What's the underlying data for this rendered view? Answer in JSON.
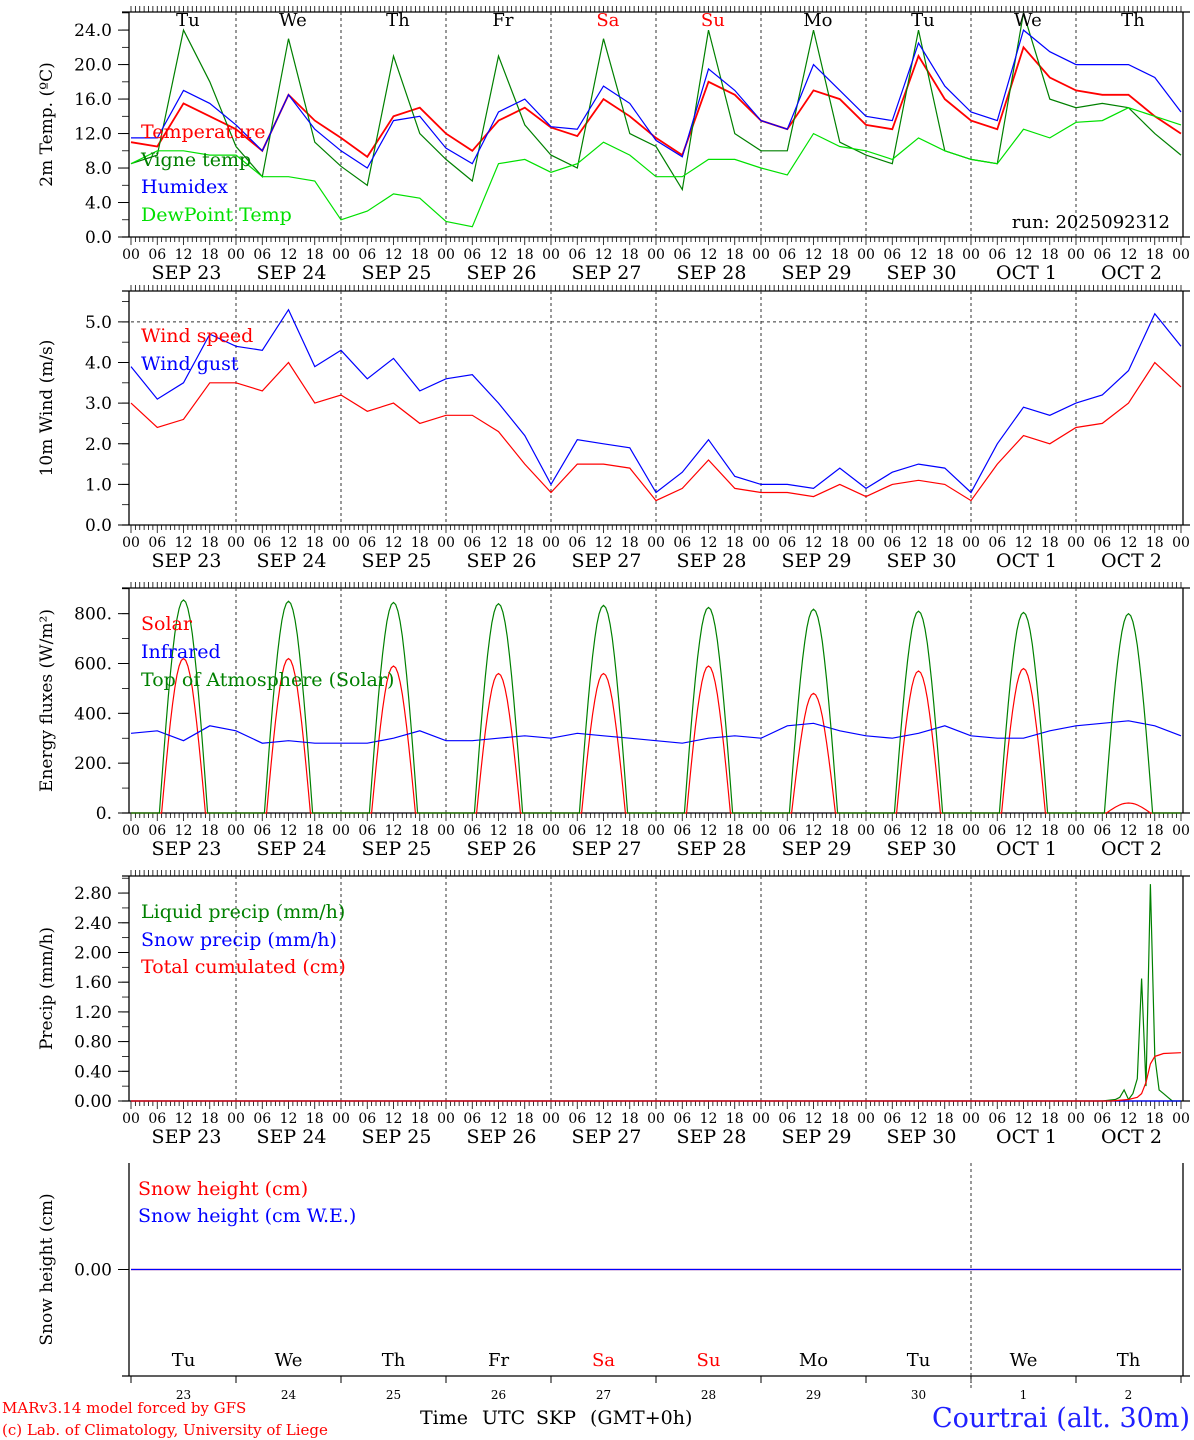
{
  "chart_data": [
    {
      "type": "line",
      "id": "temp",
      "ylabel": "2m Temp. (ºC)",
      "ylim": [
        0,
        26.1
      ],
      "yticks": [
        "0.0",
        "4.0",
        "8.0",
        "12.0",
        "16.0",
        "20.0",
        "24.0"
      ],
      "ytick_values": [
        0,
        4,
        8,
        12,
        16,
        20,
        24
      ],
      "annotation": "run: 2025092312",
      "x_step_hours": 6,
      "series": [
        {
          "name": "Temperature",
          "color": "#ff0000",
          "values": [
            11,
            10.5,
            15.5,
            14,
            12.5,
            10,
            16.5,
            13.5,
            11.5,
            9.3,
            14,
            15,
            12,
            10,
            13.5,
            15,
            12.7,
            11.7,
            16,
            14,
            11.5,
            9.5,
            18,
            16.5,
            13.5,
            12.5,
            17,
            16,
            13,
            12.5,
            21,
            16,
            13.5,
            12.5,
            22,
            18.5,
            17,
            16.5,
            16.5,
            14,
            12
          ]
        },
        {
          "name": "Vigne temp",
          "color": "#008000",
          "values": [
            8.5,
            9.5,
            24,
            18,
            10.5,
            7,
            23,
            11,
            8.2,
            6,
            21,
            12,
            9,
            6.5,
            21,
            13,
            9.5,
            8,
            23,
            12,
            10.5,
            5.5,
            24,
            12,
            10,
            10,
            24,
            11,
            9.5,
            8.5,
            24,
            10,
            9,
            8.5,
            26,
            16,
            15,
            15.5,
            15,
            12,
            9.5
          ]
        },
        {
          "name": "Humidex",
          "color": "#0000ff",
          "values": [
            11.5,
            11.5,
            17,
            15.5,
            13,
            10,
            16.5,
            12.5,
            10,
            8,
            13.5,
            14,
            10.3,
            8.5,
            14.5,
            16,
            12.8,
            12.5,
            17.5,
            15.5,
            11.2,
            9.3,
            19.5,
            17,
            13.5,
            12.5,
            20,
            17,
            14,
            13.5,
            22.5,
            17.5,
            14.5,
            13.5,
            24,
            21.5,
            20,
            20,
            20,
            18.5,
            14.5
          ]
        },
        {
          "name": "DewPoint Temp",
          "color": "#00e000",
          "values": [
            8.5,
            10,
            10,
            9.5,
            9.5,
            7,
            7,
            6.5,
            2,
            3,
            5,
            4.5,
            1.8,
            1.2,
            8.5,
            9,
            7.5,
            8.5,
            11,
            9.5,
            7,
            7,
            9,
            9,
            8,
            7.2,
            12,
            10.5,
            10,
            9,
            11.5,
            10,
            9,
            8.5,
            12.5,
            11.5,
            13.3,
            13.5,
            15,
            14,
            13
          ]
        }
      ]
    },
    {
      "type": "line",
      "id": "wind",
      "ylabel": "10m Wind (m/s)",
      "ylim": [
        0,
        5.76
      ],
      "yticks": [
        "0.0",
        "1.0",
        "2.0",
        "3.0",
        "4.0",
        "5.0"
      ],
      "ytick_values": [
        0,
        1,
        2,
        3,
        4,
        5
      ],
      "reference_line": 5.0,
      "x_step_hours": 6,
      "series": [
        {
          "name": "Wind speed",
          "color": "#ff0000",
          "values": [
            3.0,
            2.4,
            2.6,
            3.5,
            3.5,
            3.3,
            4.0,
            3.0,
            3.2,
            2.8,
            3.0,
            2.5,
            2.7,
            2.7,
            2.3,
            1.5,
            0.8,
            1.5,
            1.5,
            1.4,
            0.6,
            0.9,
            1.6,
            0.9,
            0.8,
            0.8,
            0.7,
            1.0,
            0.7,
            1.0,
            1.1,
            1.0,
            0.6,
            1.5,
            2.2,
            2.0,
            2.4,
            2.5,
            3.0,
            4.0,
            3.4
          ]
        },
        {
          "name": "Wind gust",
          "color": "#0000ff",
          "values": [
            3.9,
            3.1,
            3.5,
            4.7,
            4.4,
            4.3,
            5.3,
            3.9,
            4.3,
            3.6,
            4.1,
            3.3,
            3.6,
            3.7,
            3.0,
            2.2,
            1.0,
            2.1,
            2.0,
            1.9,
            0.8,
            1.3,
            2.1,
            1.2,
            1.0,
            1.0,
            0.9,
            1.4,
            0.9,
            1.3,
            1.5,
            1.4,
            0.8,
            2.0,
            2.9,
            2.7,
            3.0,
            3.2,
            3.8,
            5.2,
            4.4
          ]
        }
      ]
    },
    {
      "type": "line",
      "id": "energy",
      "ylabel": "Energy fluxes (W/m²)",
      "ylim": [
        0,
        903
      ],
      "yticks": [
        "0.",
        "200.",
        "400.",
        "600.",
        "800."
      ],
      "ytick_values": [
        0,
        200,
        400,
        600,
        800
      ],
      "series": [
        {
          "name": "Solar",
          "color": "#ff0000",
          "daily_peak": [
            620,
            620,
            590,
            560,
            560,
            590,
            480,
            570,
            580,
            40
          ]
        },
        {
          "name": "Infrared",
          "color": "#0000ff",
          "x_step_hours": 6,
          "values": [
            320,
            330,
            290,
            350,
            330,
            280,
            290,
            280,
            280,
            280,
            300,
            330,
            290,
            290,
            300,
            310,
            300,
            320,
            310,
            300,
            290,
            280,
            300,
            310,
            300,
            350,
            360,
            330,
            310,
            300,
            320,
            350,
            310,
            300,
            300,
            330,
            350,
            360,
            370,
            350,
            310
          ]
        },
        {
          "name": "Top of Atmosphere (Solar)",
          "color": "#008000",
          "daily_peak": [
            855,
            850,
            845,
            840,
            833,
            825,
            818,
            810,
            805,
            800
          ]
        }
      ]
    },
    {
      "type": "line",
      "id": "precip",
      "ylabel": "Precip (mm/h)",
      "ylim": [
        0,
        3.03
      ],
      "yticks": [
        "0.00",
        "0.40",
        "0.80",
        "1.20",
        "1.60",
        "2.00",
        "2.40",
        "2.80"
      ],
      "ytick_values": [
        0,
        0.4,
        0.8,
        1.2,
        1.6,
        2.0,
        2.4,
        2.8
      ],
      "series": [
        {
          "name": "Liquid precip (mm/h)",
          "color": "#008000",
          "x": [
            0,
            222,
            225,
            226,
            227,
            228,
            229,
            230,
            231,
            232,
            233,
            234,
            235,
            236,
            237,
            238,
            240
          ],
          "values": [
            0,
            0,
            0.02,
            0.05,
            0.15,
            0.02,
            0.1,
            0.3,
            1.65,
            0.2,
            2.92,
            0.6,
            0.15,
            0.1,
            0.05,
            0,
            0
          ]
        },
        {
          "name": "Snow precip (mm/h)",
          "color": "#0000ff",
          "x": [
            0,
            240
          ],
          "values": [
            0,
            0
          ]
        },
        {
          "name": "Total cumulated (cm)",
          "color": "#ff0000",
          "x": [
            0,
            224,
            228,
            230,
            231,
            232,
            233,
            234,
            235,
            236,
            240
          ],
          "values": [
            0,
            0,
            0.02,
            0.05,
            0.1,
            0.25,
            0.5,
            0.6,
            0.62,
            0.64,
            0.65
          ]
        }
      ]
    },
    {
      "type": "line",
      "id": "snow",
      "ylabel": "Snow height (cm)",
      "ylim": [
        -1,
        1
      ],
      "yticks": [
        "0.00"
      ],
      "ytick_values": [
        0
      ],
      "series": [
        {
          "name": "Snow height (cm)",
          "color": "#ff0000",
          "x": [
            0,
            240
          ],
          "values": [
            0,
            0
          ]
        },
        {
          "name": "Snow height (cm W.E.)",
          "color": "#0000ff",
          "x": [
            0,
            240
          ],
          "values": [
            0,
            0
          ]
        }
      ]
    }
  ],
  "x_axis": {
    "range_hours": [
      0,
      240
    ],
    "hour_labels": [
      "00",
      "06",
      "12",
      "18"
    ],
    "dates": [
      "SEP 23",
      "SEP 24",
      "SEP 25",
      "SEP 26",
      "SEP 27",
      "SEP 28",
      "SEP 29",
      "SEP 30",
      "OCT  1",
      "OCT  2"
    ],
    "weekdays": [
      "Tu",
      "We",
      "Th",
      "Fr",
      "Sa",
      "Su",
      "Mo",
      "Tu",
      "We",
      "Th"
    ],
    "weekday_colors": [
      "#000000",
      "#000000",
      "#000000",
      "#000000",
      "#ff0000",
      "#ff0000",
      "#000000",
      "#000000",
      "#000000",
      "#000000"
    ],
    "day_numbers": [
      "23",
      "24",
      "25",
      "26",
      "27",
      "28",
      "29",
      "30",
      "1",
      "2"
    ]
  },
  "footer": {
    "model_line": "MARv3.14 model forced by GFS",
    "credit_line": "(c) Lab. of Climatology, University of Liege",
    "time_label_prefix": "Time ",
    "time_label_a": "UTC",
    "time_label_b": "SKP",
    "time_label_suffix": "(GMT+0h)",
    "station": "Courtrai (alt. 30m)"
  }
}
